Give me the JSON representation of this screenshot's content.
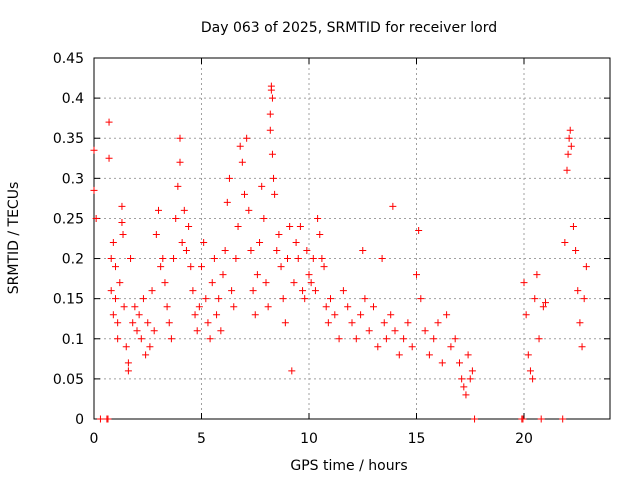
{
  "chart_data": {
    "type": "scatter",
    "title": "Day 063 of 2025, SRMTID for receiver lord",
    "xlabel": "GPS time / hours",
    "ylabel": "SRMTID / TECUs",
    "xlim": [
      0,
      24
    ],
    "ylim": [
      0,
      0.45
    ],
    "grid": true,
    "marker": "+",
    "xticks": [
      0,
      5,
      10,
      15,
      20
    ],
    "xtick_labels": [
      "0",
      "5",
      "10",
      "15",
      "20"
    ],
    "yticks": [
      0,
      0.05,
      0.1,
      0.15,
      0.2,
      0.25,
      0.3,
      0.35,
      0.4,
      0.45
    ],
    "ytick_labels": [
      "0",
      "0.05",
      "0.1",
      "0.15",
      "0.2",
      "0.25",
      "0.3",
      "0.35",
      "0.4",
      "0.45"
    ],
    "series": [
      {
        "name": "SRMTID",
        "color": "#ff0000",
        "points": [
          [
            0.0,
            0.335
          ],
          [
            0.0,
            0.285
          ],
          [
            0.1,
            0.25
          ],
          [
            0.3,
            0.0
          ],
          [
            0.6,
            0.0
          ],
          [
            0.65,
            0.0
          ],
          [
            0.7,
            0.37
          ],
          [
            0.7,
            0.325
          ],
          [
            0.8,
            0.2
          ],
          [
            0.8,
            0.16
          ],
          [
            0.9,
            0.22
          ],
          [
            0.9,
            0.13
          ],
          [
            1.0,
            0.19
          ],
          [
            1.0,
            0.15
          ],
          [
            1.1,
            0.12
          ],
          [
            1.1,
            0.1
          ],
          [
            1.2,
            0.17
          ],
          [
            1.3,
            0.265
          ],
          [
            1.3,
            0.245
          ],
          [
            1.35,
            0.23
          ],
          [
            1.4,
            0.14
          ],
          [
            1.5,
            0.09
          ],
          [
            1.6,
            0.07
          ],
          [
            1.6,
            0.06
          ],
          [
            1.7,
            0.2
          ],
          [
            1.8,
            0.12
          ],
          [
            1.9,
            0.14
          ],
          [
            2.0,
            0.11
          ],
          [
            2.1,
            0.13
          ],
          [
            2.2,
            0.1
          ],
          [
            2.3,
            0.15
          ],
          [
            2.4,
            0.08
          ],
          [
            2.5,
            0.12
          ],
          [
            2.6,
            0.09
          ],
          [
            2.7,
            0.16
          ],
          [
            2.8,
            0.11
          ],
          [
            2.9,
            0.23
          ],
          [
            3.0,
            0.26
          ],
          [
            3.1,
            0.19
          ],
          [
            3.2,
            0.2
          ],
          [
            3.3,
            0.17
          ],
          [
            3.4,
            0.14
          ],
          [
            3.5,
            0.12
          ],
          [
            3.6,
            0.1
          ],
          [
            3.7,
            0.2
          ],
          [
            3.8,
            0.25
          ],
          [
            3.9,
            0.29
          ],
          [
            4.0,
            0.35
          ],
          [
            4.0,
            0.32
          ],
          [
            4.1,
            0.22
          ],
          [
            4.2,
            0.26
          ],
          [
            4.3,
            0.21
          ],
          [
            4.4,
            0.24
          ],
          [
            4.5,
            0.19
          ],
          [
            4.6,
            0.16
          ],
          [
            4.7,
            0.13
          ],
          [
            4.8,
            0.11
          ],
          [
            4.9,
            0.14
          ],
          [
            5.0,
            0.19
          ],
          [
            5.1,
            0.22
          ],
          [
            5.2,
            0.15
          ],
          [
            5.3,
            0.12
          ],
          [
            5.4,
            0.1
          ],
          [
            5.5,
            0.17
          ],
          [
            5.6,
            0.2
          ],
          [
            5.7,
            0.13
          ],
          [
            5.8,
            0.15
          ],
          [
            5.9,
            0.11
          ],
          [
            6.0,
            0.18
          ],
          [
            6.1,
            0.21
          ],
          [
            6.2,
            0.27
          ],
          [
            6.3,
            0.3
          ],
          [
            6.4,
            0.16
          ],
          [
            6.5,
            0.14
          ],
          [
            6.6,
            0.2
          ],
          [
            6.7,
            0.24
          ],
          [
            6.8,
            0.34
          ],
          [
            6.9,
            0.32
          ],
          [
            7.0,
            0.28
          ],
          [
            7.1,
            0.35
          ],
          [
            7.2,
            0.26
          ],
          [
            7.3,
            0.21
          ],
          [
            7.4,
            0.16
          ],
          [
            7.5,
            0.13
          ],
          [
            7.6,
            0.18
          ],
          [
            7.7,
            0.22
          ],
          [
            7.8,
            0.29
          ],
          [
            7.9,
            0.25
          ],
          [
            8.0,
            0.17
          ],
          [
            8.1,
            0.14
          ],
          [
            8.2,
            0.38
          ],
          [
            8.2,
            0.36
          ],
          [
            8.25,
            0.415
          ],
          [
            8.25,
            0.41
          ],
          [
            8.3,
            0.4
          ],
          [
            8.3,
            0.33
          ],
          [
            8.35,
            0.3
          ],
          [
            8.4,
            0.28
          ],
          [
            8.5,
            0.21
          ],
          [
            8.6,
            0.23
          ],
          [
            8.7,
            0.19
          ],
          [
            8.8,
            0.15
          ],
          [
            8.9,
            0.12
          ],
          [
            9.0,
            0.2
          ],
          [
            9.1,
            0.24
          ],
          [
            9.2,
            0.06
          ],
          [
            9.3,
            0.17
          ],
          [
            9.4,
            0.22
          ],
          [
            9.5,
            0.2
          ],
          [
            9.6,
            0.24
          ],
          [
            9.7,
            0.16
          ],
          [
            9.8,
            0.15
          ],
          [
            9.9,
            0.21
          ],
          [
            10.0,
            0.18
          ],
          [
            10.1,
            0.17
          ],
          [
            10.2,
            0.2
          ],
          [
            10.3,
            0.16
          ],
          [
            10.4,
            0.25
          ],
          [
            10.5,
            0.23
          ],
          [
            10.6,
            0.2
          ],
          [
            10.7,
            0.19
          ],
          [
            10.8,
            0.14
          ],
          [
            10.9,
            0.12
          ],
          [
            11.0,
            0.15
          ],
          [
            11.2,
            0.13
          ],
          [
            11.4,
            0.1
          ],
          [
            11.6,
            0.16
          ],
          [
            11.8,
            0.14
          ],
          [
            12.0,
            0.12
          ],
          [
            12.2,
            0.1
          ],
          [
            12.4,
            0.13
          ],
          [
            12.5,
            0.21
          ],
          [
            12.6,
            0.15
          ],
          [
            12.8,
            0.11
          ],
          [
            13.0,
            0.14
          ],
          [
            13.2,
            0.09
          ],
          [
            13.4,
            0.2
          ],
          [
            13.5,
            0.12
          ],
          [
            13.6,
            0.1
          ],
          [
            13.8,
            0.13
          ],
          [
            13.9,
            0.265
          ],
          [
            14.0,
            0.11
          ],
          [
            14.2,
            0.08
          ],
          [
            14.4,
            0.1
          ],
          [
            14.6,
            0.12
          ],
          [
            14.8,
            0.09
          ],
          [
            15.0,
            0.18
          ],
          [
            15.1,
            0.235
          ],
          [
            15.2,
            0.15
          ],
          [
            15.4,
            0.11
          ],
          [
            15.6,
            0.08
          ],
          [
            15.8,
            0.1
          ],
          [
            16.0,
            0.12
          ],
          [
            16.2,
            0.07
          ],
          [
            16.4,
            0.13
          ],
          [
            16.6,
            0.09
          ],
          [
            16.8,
            0.1
          ],
          [
            17.0,
            0.07
          ],
          [
            17.1,
            0.05
          ],
          [
            17.2,
            0.04
          ],
          [
            17.3,
            0.03
          ],
          [
            17.4,
            0.08
          ],
          [
            17.5,
            0.05
          ],
          [
            17.6,
            0.06
          ],
          [
            17.7,
            0.0
          ],
          [
            19.9,
            0.0
          ],
          [
            19.95,
            0.0
          ],
          [
            20.0,
            0.17
          ],
          [
            20.1,
            0.13
          ],
          [
            20.2,
            0.08
          ],
          [
            20.3,
            0.06
          ],
          [
            20.4,
            0.05
          ],
          [
            20.5,
            0.15
          ],
          [
            20.6,
            0.18
          ],
          [
            20.7,
            0.1
          ],
          [
            20.8,
            0.0
          ],
          [
            20.9,
            0.14
          ],
          [
            21.0,
            0.145
          ],
          [
            21.8,
            0.0
          ],
          [
            21.9,
            0.22
          ],
          [
            22.0,
            0.31
          ],
          [
            22.05,
            0.33
          ],
          [
            22.1,
            0.35
          ],
          [
            22.15,
            0.36
          ],
          [
            22.2,
            0.34
          ],
          [
            22.3,
            0.24
          ],
          [
            22.4,
            0.21
          ],
          [
            22.5,
            0.16
          ],
          [
            22.6,
            0.12
          ],
          [
            22.7,
            0.09
          ],
          [
            22.8,
            0.15
          ],
          [
            22.9,
            0.19
          ]
        ]
      }
    ]
  }
}
